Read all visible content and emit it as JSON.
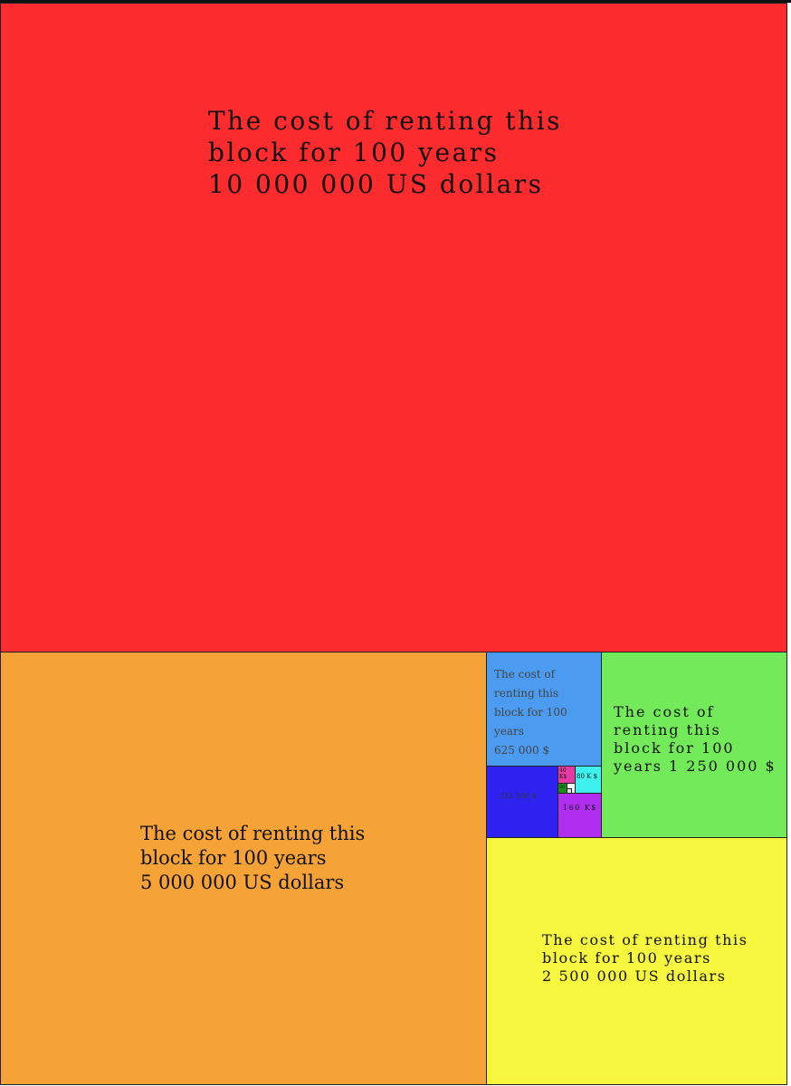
{
  "blocks": [
    {
      "lines": [
        "The cost of renting this",
        "block for 100 years",
        "10 000 000 US dollars"
      ]
    },
    {
      "lines": [
        "The cost of renting this",
        "block for 100 years",
        "5 000 000 US dollars"
      ]
    },
    {
      "lines": [
        "The cost of",
        "renting this",
        "block for 100",
        "years",
        "625 000 $"
      ]
    },
    {
      "lines": [
        "The cost of",
        "renting this",
        "block for 100",
        "years 1 250 000 $"
      ]
    },
    {
      "lines": [
        "The cost of renting this",
        "block for 100 years",
        "2 500 000 US dollars"
      ]
    },
    {
      "lines": [
        "312 500 $"
      ]
    },
    {
      "lines": [
        "160 K$"
      ]
    },
    {
      "lines": [
        "80 K $"
      ]
    },
    {
      "lines": [
        "40",
        "K$"
      ]
    },
    {
      "lines": [
        "20"
      ]
    }
  ]
}
